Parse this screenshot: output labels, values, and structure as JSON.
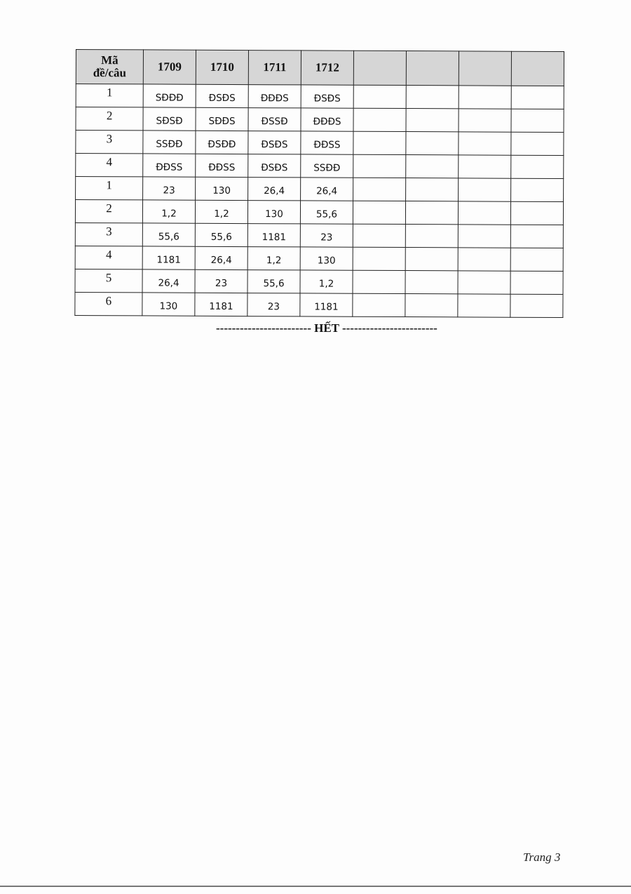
{
  "table": {
    "header_line1": "Mã",
    "header_line2": "đề/câu",
    "codes": [
      "1709",
      "1710",
      "1711",
      "1712",
      "",
      "",
      "",
      ""
    ],
    "rows": [
      {
        "q": "1",
        "values": [
          "SĐĐĐ",
          "ĐSĐS",
          "ĐĐĐS",
          "ĐSĐS"
        ]
      },
      {
        "q": "2",
        "values": [
          "SĐSĐ",
          "SĐĐS",
          "ĐSSĐ",
          "ĐĐĐS"
        ]
      },
      {
        "q": "3",
        "values": [
          "SSĐĐ",
          "ĐSĐĐ",
          "ĐSĐS",
          "ĐĐSS"
        ]
      },
      {
        "q": "4",
        "values": [
          "ĐĐSS",
          "ĐĐSS",
          "ĐSĐS",
          "SSĐĐ"
        ]
      },
      {
        "q": "1",
        "values": [
          "23",
          "130",
          "26,4",
          "26,4"
        ]
      },
      {
        "q": "2",
        "values": [
          "1,2",
          "1,2",
          "130",
          "55,6"
        ]
      },
      {
        "q": "3",
        "values": [
          "55,6",
          "55,6",
          "1181",
          "23"
        ]
      },
      {
        "q": "4",
        "values": [
          "1181",
          "26,4",
          "1,2",
          "130"
        ]
      },
      {
        "q": "5",
        "values": [
          "26,4",
          "23",
          "55,6",
          "1,2"
        ]
      },
      {
        "q": "6",
        "values": [
          "130",
          "1181",
          "23",
          "1181"
        ]
      }
    ]
  },
  "end_text": "------------------------ HẾT ------------------------",
  "page_number": "Trang 3",
  "colors": {
    "header_bg": "#d6d6d6",
    "border": "#222222"
  }
}
